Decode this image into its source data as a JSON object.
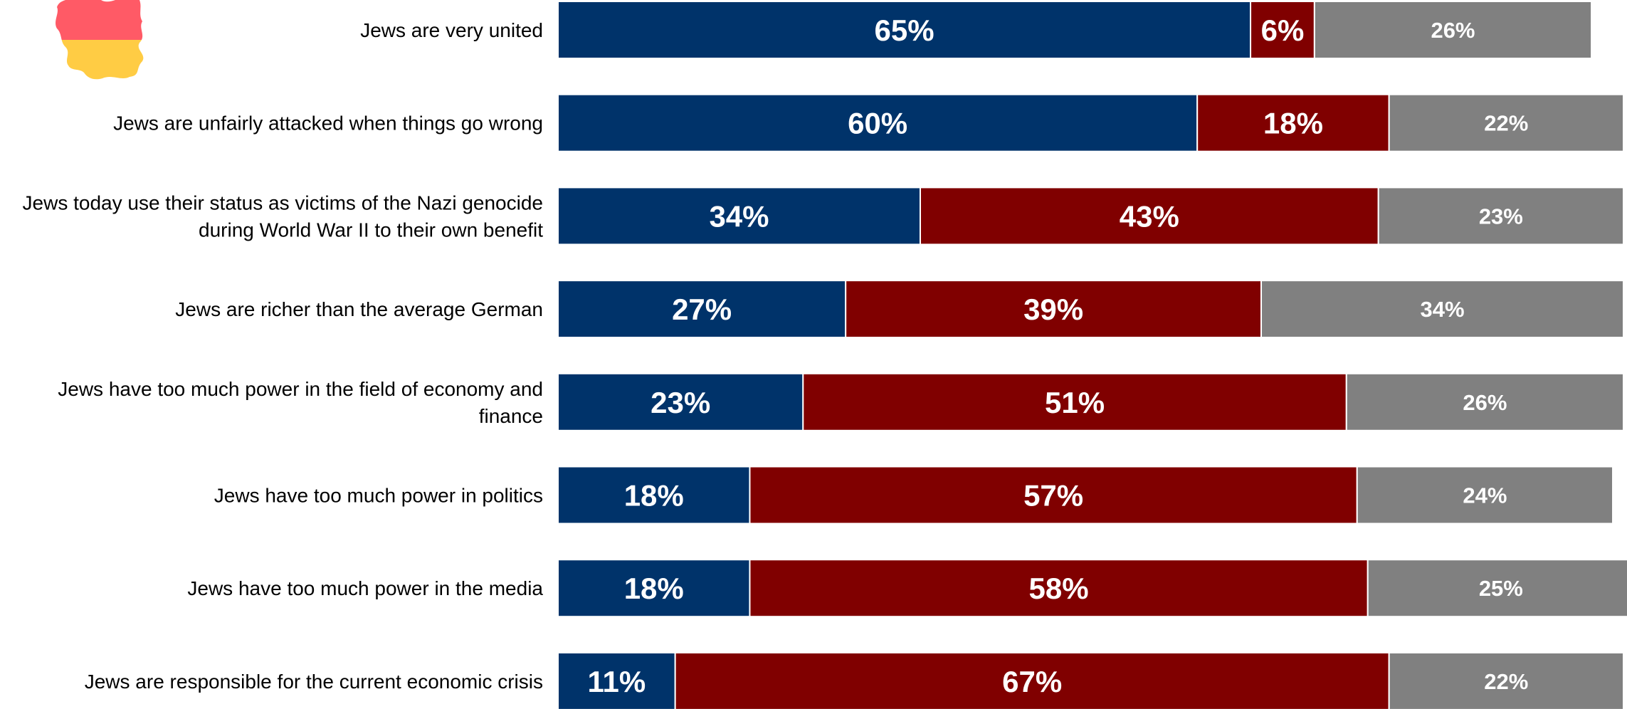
{
  "colors": {
    "agree": "#00336a",
    "disagree": "#800000",
    "dont_know": "#808080",
    "flag_top": "#ff5a66",
    "flag_bottom": "#ffcc44"
  },
  "icon": "germany-map-flag-icon",
  "chart_data": {
    "type": "bar",
    "orientation": "horizontal",
    "stacked": true,
    "grid": false,
    "legend": "none",
    "xlim": [
      0,
      100
    ],
    "categories": [
      [
        "Jews are very united"
      ],
      [
        "Jews are unfairly attacked when things go wrong"
      ],
      [
        "Jews today use their status as victims of the Nazi genocide",
        "during World War II to their own benefit"
      ],
      [
        "Jews are richer than the average German"
      ],
      [
        "Jews have too much power in the field of economy and",
        "finance"
      ],
      [
        "Jews have too much power in politics"
      ],
      [
        "Jews have too much power in the media"
      ],
      [
        "Jews are responsible for the current economic crisis"
      ]
    ],
    "series": [
      {
        "color": "#00336a",
        "values": [
          65,
          60,
          34,
          27,
          23,
          18,
          18,
          11
        ],
        "labels": [
          "65%",
          "60%",
          "34%",
          "27%",
          "23%",
          "18%",
          "18%",
          "11%"
        ]
      },
      {
        "color": "#800000",
        "values": [
          6,
          18,
          43,
          39,
          51,
          57,
          58,
          67
        ],
        "labels": [
          "6%",
          "18%",
          "43%",
          "39%",
          "51%",
          "57%",
          "58%",
          "67%"
        ]
      },
      {
        "color": "#808080",
        "values": [
          26,
          22,
          23,
          34,
          26,
          24,
          25,
          22
        ],
        "labels": [
          "26%",
          "22%",
          "23%",
          "34%",
          "26%",
          "24%",
          "25%",
          "22%"
        ]
      }
    ]
  }
}
